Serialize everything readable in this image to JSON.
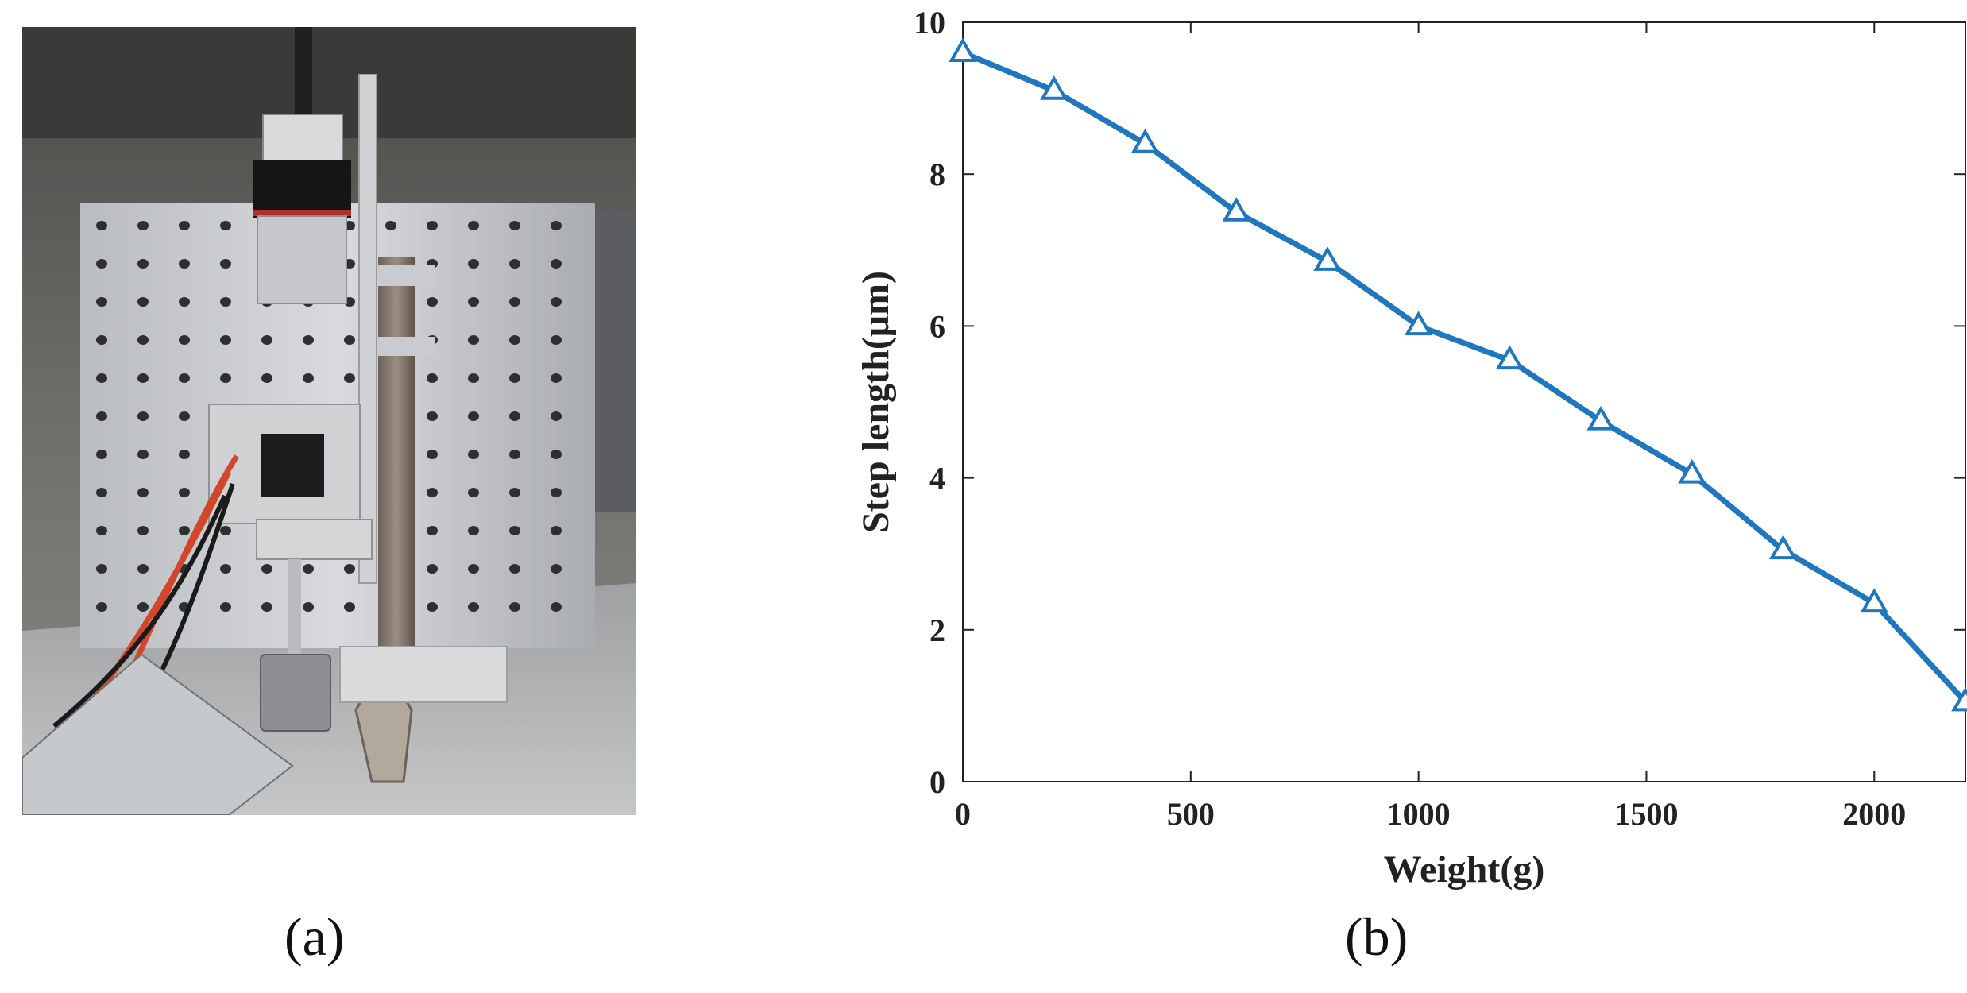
{
  "panels": {
    "a": {
      "label": "(a)"
    },
    "b": {
      "label": "(b)"
    }
  },
  "colors": {
    "series": "#1f77c0",
    "axis": "#222222"
  },
  "chart_data": {
    "type": "line",
    "xlabel": "Weight(g)",
    "ylabel": "Step length(μm)",
    "xlim": [
      0,
      2200
    ],
    "ylim": [
      0,
      10
    ],
    "xticks": [
      0,
      500,
      1000,
      1500,
      2000
    ],
    "yticks": [
      0,
      2,
      4,
      6,
      8,
      10
    ],
    "marker": "triangle",
    "grid": false,
    "series": [
      {
        "x": [
          0,
          200,
          400,
          600,
          800,
          1000,
          1200,
          1400,
          1600,
          1800,
          2000,
          2200
        ],
        "y": [
          9.6,
          9.1,
          8.4,
          7.5,
          6.85,
          6.0,
          5.55,
          4.75,
          4.05,
          3.05,
          2.35,
          1.05
        ]
      }
    ]
  }
}
